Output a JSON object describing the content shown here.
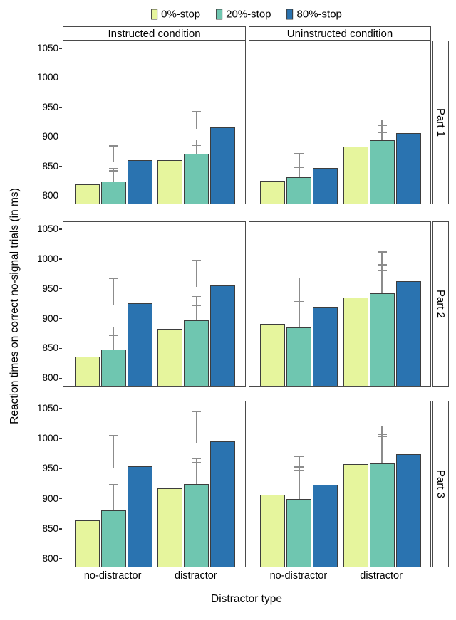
{
  "chart_data": {
    "type": "bar",
    "title": "",
    "xlabel": "Distractor type",
    "ylabel": "Reaction times on correct no-signal trials (in ms)",
    "legend_position": "top",
    "grid": false,
    "col_facets": [
      "Instructed condition",
      "Uninstructed condition"
    ],
    "row_facets": [
      "Part 1",
      "Part 2",
      "Part 3"
    ],
    "categories": [
      "no-distractor",
      "distractor"
    ],
    "series_names": [
      "0%-stop",
      "20%-stop",
      "80%-stop"
    ],
    "series_colors": [
      "#e6f59d",
      "#6fc6b0",
      "#2a73b0"
    ],
    "errorbar_color": "#8c8c8c",
    "yticks": [
      800,
      850,
      900,
      950,
      1000,
      1050
    ],
    "ylim": [
      786,
      1063
    ],
    "panels": [
      {
        "row_facet": "Part 1",
        "col_facet": "Instructed condition",
        "series": [
          {
            "name": "0%-stop",
            "values": [
              818,
              860
            ],
            "error_tops": [
              845,
              888
            ]
          },
          {
            "name": "20%-stop",
            "values": [
              823,
              870
            ],
            "error_tops": [
              849,
              897
            ]
          },
          {
            "name": "80%-stop",
            "values": [
              859,
              915
            ],
            "error_tops": [
              887,
              945
            ]
          }
        ]
      },
      {
        "row_facet": "Part 1",
        "col_facet": "Uninstructed condition",
        "series": [
          {
            "name": "0%-stop",
            "values": [
              825,
              882
            ],
            "error_tops": [
              850,
              909
            ]
          },
          {
            "name": "20%-stop",
            "values": [
              831,
              893
            ],
            "error_tops": [
              856,
              921
            ]
          },
          {
            "name": "80%-stop",
            "values": [
              846,
              905
            ],
            "error_tops": [
              874,
              931
            ]
          }
        ]
      },
      {
        "row_facet": "Part 2",
        "col_facet": "Instructed condition",
        "series": [
          {
            "name": "0%-stop",
            "values": [
              835,
              882
            ],
            "error_tops": [
              874,
              924
            ]
          },
          {
            "name": "20%-stop",
            "values": [
              847,
              896
            ],
            "error_tops": [
              888,
              939
            ]
          },
          {
            "name": "80%-stop",
            "values": [
              924,
              954
            ],
            "error_tops": [
              969,
              1000
            ]
          }
        ]
      },
      {
        "row_facet": "Part 2",
        "col_facet": "Uninstructed condition",
        "series": [
          {
            "name": "0%-stop",
            "values": [
              890,
              934
            ],
            "error_tops": [
              937,
              982
            ]
          },
          {
            "name": "20%-stop",
            "values": [
              884,
              941
            ],
            "error_tops": [
              931,
              992
            ]
          },
          {
            "name": "80%-stop",
            "values": [
              918,
              961
            ],
            "error_tops": [
              970,
              1014
            ]
          }
        ]
      },
      {
        "row_facet": "Part 3",
        "col_facet": "Instructed condition",
        "series": [
          {
            "name": "0%-stop",
            "values": [
              863,
              916
            ],
            "error_tops": [
              908,
              962
            ]
          },
          {
            "name": "20%-stop",
            "values": [
              880,
              923
            ],
            "error_tops": [
              926,
              969
            ]
          },
          {
            "name": "80%-stop",
            "values": [
              953,
              994
            ],
            "error_tops": [
              1007,
              1047
            ]
          }
        ]
      },
      {
        "row_facet": "Part 3",
        "col_facet": "Uninstructed condition",
        "series": [
          {
            "name": "0%-stop",
            "values": [
              906,
              956
            ],
            "error_tops": [
              955,
              1006
            ]
          },
          {
            "name": "20%-stop",
            "values": [
              899,
              958
            ],
            "error_tops": [
              949,
              1009
            ]
          },
          {
            "name": "80%-stop",
            "values": [
              922,
              973
            ],
            "error_tops": [
              973,
              1023
            ]
          }
        ]
      }
    ]
  }
}
